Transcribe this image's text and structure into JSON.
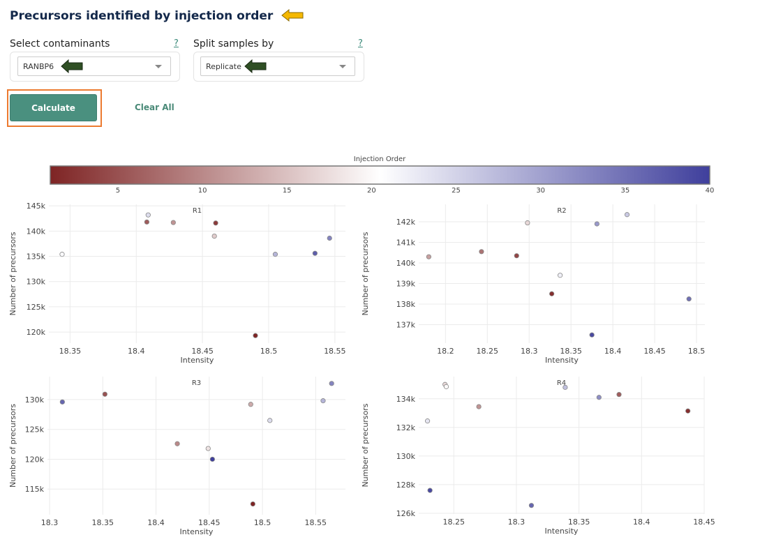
{
  "header": {
    "title": "Precursors identified by injection order"
  },
  "annotation_colors": {
    "title_arrow": "#f5b800",
    "select_arrow": "#2f4f24",
    "button_highlight": "#ec7a30"
  },
  "controls": {
    "contaminants": {
      "label": "Select contaminants",
      "help": "?",
      "value": "RANBP6"
    },
    "split": {
      "label": "Split samples by",
      "help": "?",
      "value": "Replicate"
    },
    "calculate_label": "Calculate",
    "clear_label": "Clear All",
    "accent": "#4a907f"
  },
  "chart_data": {
    "type": "scatter",
    "colorbar": {
      "title": "Injection Order",
      "range": [
        1,
        40
      ],
      "ticks": [
        5,
        10,
        15,
        20,
        25,
        30,
        35,
        40
      ],
      "colors": [
        "#7e2424",
        "#ffffff",
        "#3f3f9c"
      ]
    },
    "xlabel": "Intensity",
    "ylabel": "Number of precursors",
    "grid": true,
    "panels": [
      {
        "title": "R1",
        "xlim": [
          18.334,
          18.558
        ],
        "ylim": [
          117800,
          145300
        ],
        "xticks": [
          18.35,
          18.4,
          18.45,
          18.5,
          18.55
        ],
        "xtick_labels": [
          "18.35",
          "18.4",
          "18.45",
          "18.5",
          "18.55"
        ],
        "yticks": [
          120000,
          125000,
          130000,
          135000,
          140000,
          145000
        ],
        "ytick_labels": [
          "120k",
          "125k",
          "130k",
          "135k",
          "140k",
          "145k"
        ],
        "points": [
          [
            18.344,
            135400,
            21
          ],
          [
            18.409,
            143200,
            24
          ],
          [
            18.408,
            141800,
            6
          ],
          [
            18.428,
            141700,
            11
          ],
          [
            18.459,
            139000,
            16
          ],
          [
            18.46,
            141600,
            3
          ],
          [
            18.49,
            119300,
            1
          ],
          [
            18.505,
            135400,
            28
          ],
          [
            18.535,
            135600,
            37
          ],
          [
            18.546,
            138600,
            33
          ]
        ]
      },
      {
        "title": "R2",
        "xlim": [
          18.168,
          18.51
        ],
        "ylim": [
          136100,
          142850
        ],
        "xticks": [
          18.2,
          18.25,
          18.3,
          18.35,
          18.4,
          18.45,
          18.5
        ],
        "xtick_labels": [
          "18.2",
          "18.25",
          "18.3",
          "18.35",
          "18.4",
          "18.45",
          "18.5"
        ],
        "yticks": [
          137000,
          138000,
          139000,
          140000,
          141000,
          142000
        ],
        "ytick_labels": [
          "137k",
          "138k",
          "139k",
          "140k",
          "141k",
          "142k"
        ],
        "points": [
          [
            18.18,
            140300,
            12
          ],
          [
            18.243,
            140550,
            8
          ],
          [
            18.285,
            140350,
            4
          ],
          [
            18.298,
            141950,
            17
          ],
          [
            18.337,
            139400,
            22
          ],
          [
            18.327,
            138500,
            2
          ],
          [
            18.375,
            136500,
            39
          ],
          [
            18.381,
            141900,
            31
          ],
          [
            18.417,
            142350,
            26
          ],
          [
            18.491,
            138250,
            35
          ]
        ]
      },
      {
        "title": "R3",
        "xlim": [
          18.298,
          18.578
        ],
        "ylim": [
          110700,
          133850
        ],
        "xticks": [
          18.3,
          18.35,
          18.4,
          18.45,
          18.5,
          18.55
        ],
        "xtick_labels": [
          "18.3",
          "18.35",
          "18.4",
          "18.45",
          "18.5",
          "18.55"
        ],
        "yticks": [
          115000,
          120000,
          125000,
          130000
        ],
        "ytick_labels": [
          "115k",
          "120k",
          "125k",
          "130k"
        ],
        "points": [
          [
            18.312,
            129600,
            36
          ],
          [
            18.352,
            130900,
            5
          ],
          [
            18.42,
            122600,
            10
          ],
          [
            18.449,
            121800,
            18
          ],
          [
            18.453,
            120000,
            40
          ],
          [
            18.489,
            129200,
            13
          ],
          [
            18.507,
            126500,
            24
          ],
          [
            18.491,
            112500,
            1
          ],
          [
            18.557,
            129800,
            28
          ],
          [
            18.565,
            132700,
            33
          ]
        ]
      },
      {
        "title": "R4",
        "xlim": [
          18.222,
          18.45
        ],
        "ylim": [
          125950,
          135550
        ],
        "xticks": [
          18.25,
          18.3,
          18.35,
          18.4,
          18.45
        ],
        "xtick_labels": [
          "18.25",
          "18.3",
          "18.35",
          "18.4",
          "18.45"
        ],
        "yticks": [
          126000,
          128000,
          130000,
          132000,
          134000
        ],
        "ytick_labels": [
          "126k",
          "128k",
          "130k",
          "132k",
          "134k"
        ],
        "points": [
          [
            18.229,
            132450,
            23
          ],
          [
            18.231,
            127600,
            39
          ],
          [
            18.243,
            135000,
            17
          ],
          [
            18.244,
            134850,
            20
          ],
          [
            18.27,
            133450,
            11
          ],
          [
            18.312,
            126550,
            36
          ],
          [
            18.339,
            134800,
            27
          ],
          [
            18.366,
            134100,
            32
          ],
          [
            18.382,
            134300,
            6
          ],
          [
            18.437,
            133150,
            2
          ]
        ]
      }
    ]
  }
}
